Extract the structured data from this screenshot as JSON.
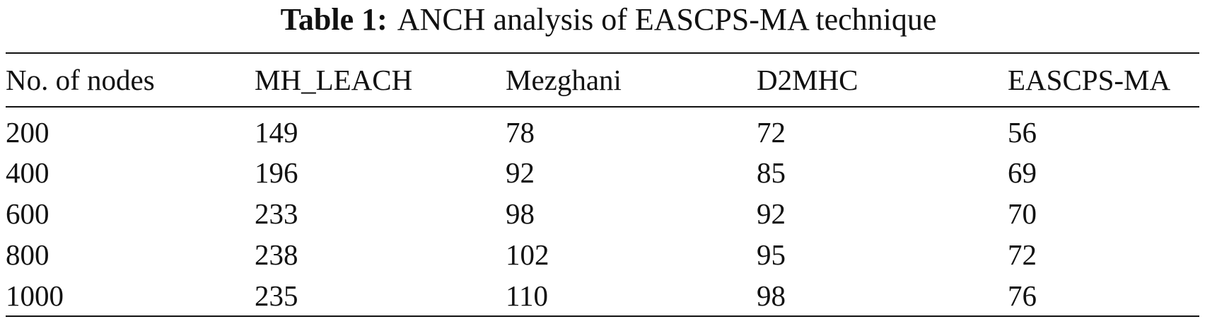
{
  "caption": {
    "label": "Table 1:",
    "text": "ANCH analysis of EASCPS-MA technique"
  },
  "table": {
    "headers": [
      "No. of nodes",
      "MH_LEACH",
      "Mezghani",
      "D2MHC",
      "EASCPS-MA"
    ],
    "rows": [
      [
        "200",
        "149",
        "78",
        "72",
        "56"
      ],
      [
        "400",
        "196",
        "92",
        "85",
        "69"
      ],
      [
        "600",
        "233",
        "98",
        "92",
        "70"
      ],
      [
        "800",
        "238",
        "102",
        "95",
        "72"
      ],
      [
        "1000",
        "235",
        "110",
        "98",
        "76"
      ]
    ]
  }
}
